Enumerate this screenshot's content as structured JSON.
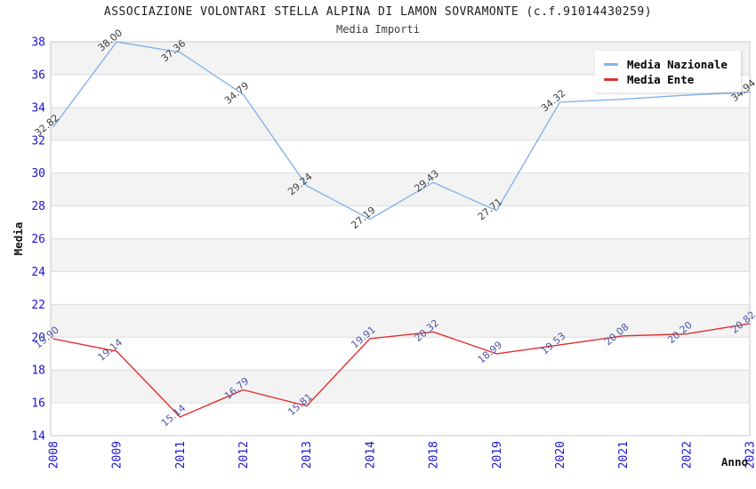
{
  "header": {
    "title": "ASSOCIAZIONE VOLONTARI STELLA ALPINA DI LAMON SOVRAMONTE (c.f.91014430259)",
    "subtitle": "Media Importi"
  },
  "legend": {
    "position": "top-right",
    "items": [
      {
        "label": "Media Nazionale",
        "color": "#86b3e8"
      },
      {
        "label": "Media Ente",
        "color": "#e23030"
      }
    ]
  },
  "colors": {
    "tick_label": "#1a16cc",
    "band_fill": "#f3f3f3",
    "gridline": "#dedede",
    "plot_border": "#c9c9c9",
    "axis_title": "#111111",
    "national_label": "#3d3d3d",
    "ente_label": "#4a55a5"
  },
  "chart_data": {
    "type": "line",
    "title": "ASSOCIAZIONE VOLONTARI STELLA ALPINA DI LAMON SOVRAMONTE (c.f.91014430259)",
    "subtitle": "Media Importi",
    "xlabel": "Anno",
    "ylabel": "Media",
    "ylim": [
      14,
      38
    ],
    "ytick_step": 2,
    "grid": "horizontal-bands",
    "legend_position": "top-right",
    "categories": [
      "2008",
      "2009",
      "2011",
      "2012",
      "2013",
      "2014",
      "2018",
      "2019",
      "2020",
      "2021",
      "2022",
      "2023"
    ],
    "series": [
      {
        "name": "Media Nazionale",
        "color": "#86b3e8",
        "label_color": "#3d3d3d",
        "values": [
          32.82,
          38.0,
          37.36,
          34.79,
          29.24,
          27.19,
          29.43,
          27.71,
          34.32,
          34.5,
          34.75,
          34.94
        ],
        "point_labels": [
          "32.82",
          "38.00",
          "37.36",
          "34.79",
          "29.24",
          "27.19",
          "29.43",
          "27.71",
          "34.32",
          "",
          "",
          "34.94"
        ]
      },
      {
        "name": "Media Ente",
        "color": "#e23030",
        "label_color": "#4a55a5",
        "values": [
          19.9,
          19.14,
          15.14,
          16.79,
          15.81,
          19.91,
          20.32,
          18.99,
          19.53,
          20.08,
          20.2,
          20.82
        ],
        "point_labels": [
          "19.90",
          "19.14",
          "15.14",
          "16.79",
          "15.81",
          "19.91",
          "20.32",
          "18.99",
          "19.53",
          "20.08",
          "20.20",
          "20.82"
        ]
      }
    ]
  }
}
